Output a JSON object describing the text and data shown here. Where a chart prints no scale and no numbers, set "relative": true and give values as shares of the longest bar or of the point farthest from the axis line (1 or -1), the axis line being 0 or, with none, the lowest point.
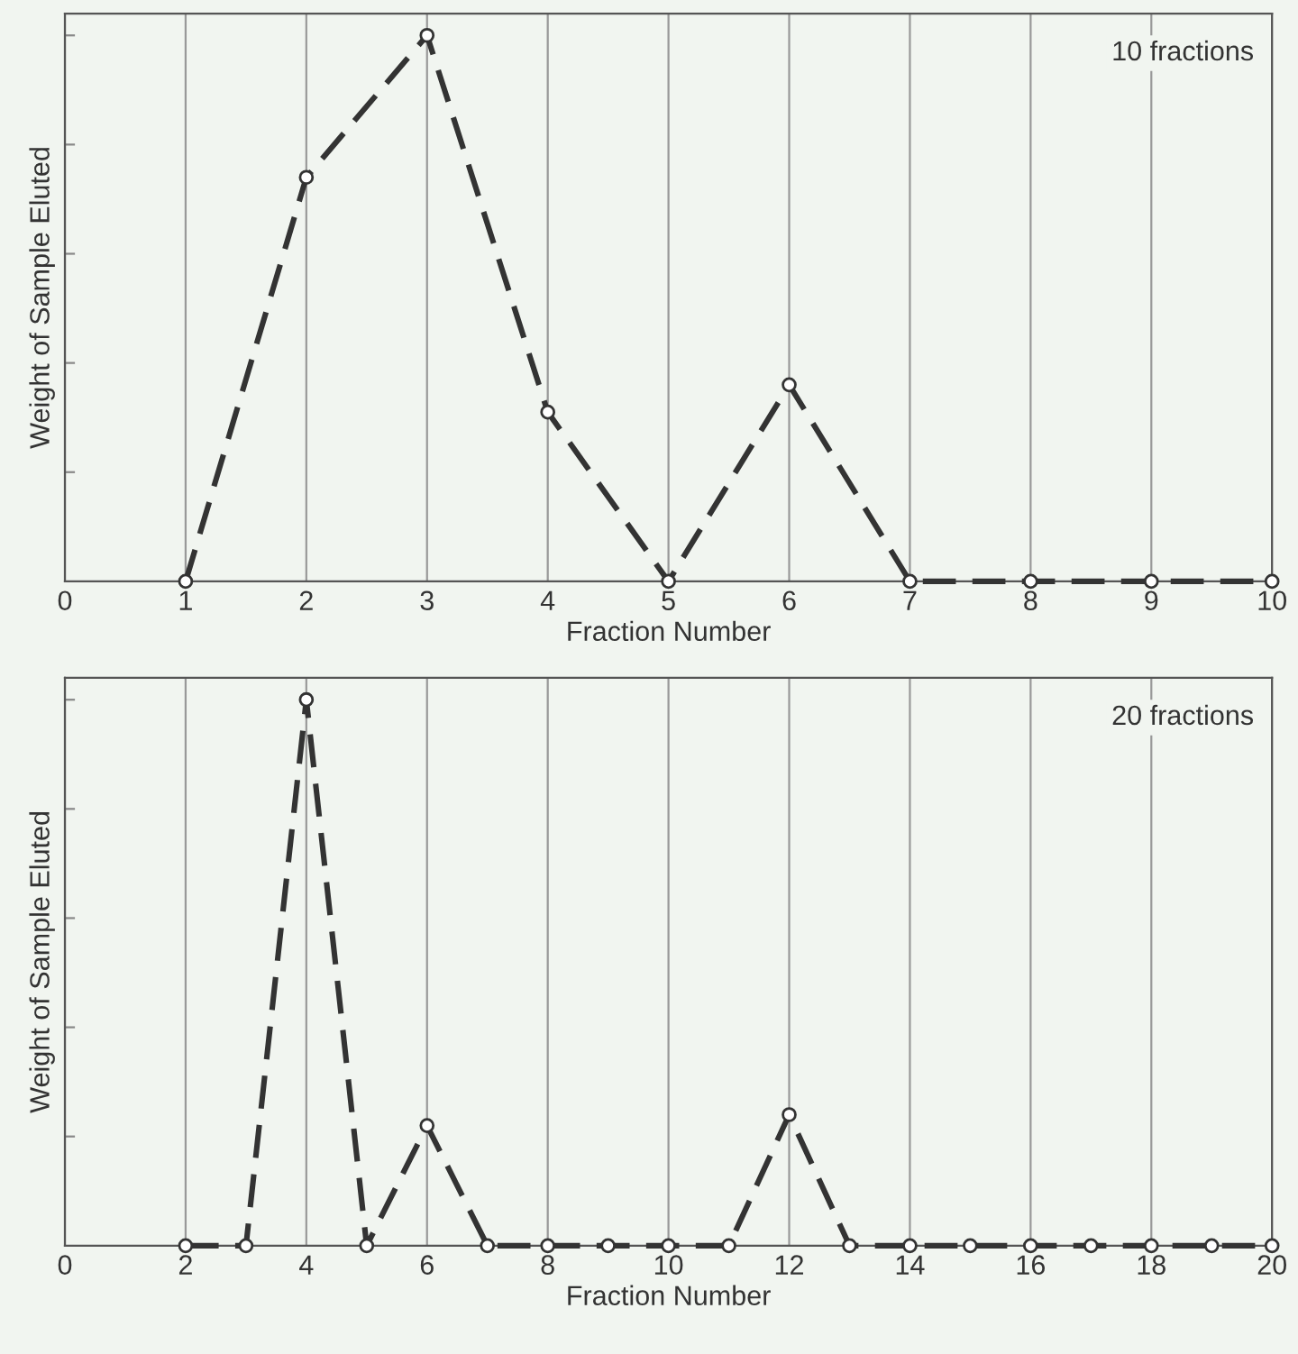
{
  "chart_data": [
    {
      "type": "line",
      "ylabel": "Weight of Sample Eluted",
      "xlabel": "Fraction Number",
      "relative": true,
      "x": [
        1,
        2,
        3,
        4,
        5,
        6,
        7,
        8,
        9,
        10
      ],
      "series": [
        {
          "color": "#333333",
          "values": [
            0,
            0.74,
            1,
            0.31,
            0,
            0.36,
            0,
            0,
            0,
            0
          ]
        }
      ],
      "xlim": [
        0,
        10
      ],
      "xticks": [
        0,
        1,
        2,
        3,
        4,
        5,
        6,
        7,
        8,
        9,
        10
      ],
      "grid": "x",
      "marker": "circle",
      "line_style": "dashed",
      "tick_labels": "x",
      "annotations": [
        "10 fractions"
      ]
    },
    {
      "type": "line",
      "ylabel": "Weight of Sample Eluted",
      "xlabel": "Fraction Number",
      "relative": true,
      "x": [
        2,
        3,
        4,
        5,
        6,
        7,
        8,
        9,
        10,
        11,
        12,
        13,
        14,
        15,
        16,
        17,
        18,
        19,
        20
      ],
      "series": [
        {
          "color": "#333333",
          "values": [
            0,
            0,
            1,
            0,
            0.22,
            0,
            0,
            0,
            0,
            0,
            0.24,
            0,
            0,
            0,
            0,
            0,
            0,
            0,
            0
          ]
        }
      ],
      "xlim": [
        0,
        20
      ],
      "xticks": [
        0,
        2,
        4,
        6,
        8,
        10,
        12,
        14,
        16,
        18,
        20
      ],
      "grid": "x",
      "marker": "circle",
      "line_style": "dashed",
      "tick_labels": "x",
      "annotations": [
        "20 fractions"
      ]
    }
  ]
}
